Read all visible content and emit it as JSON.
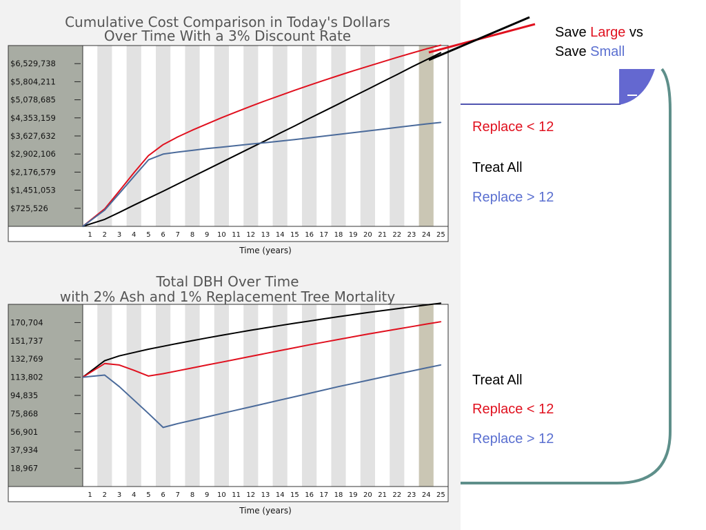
{
  "colors": {
    "red": "#e0101e",
    "black": "#000000",
    "blue": "#4a6a9a",
    "legend_blue": "#5a6fd0",
    "frame": "#5e8f8a",
    "shade": "#e2e2e2",
    "highlight": "#cac6b4",
    "tickbox": "#a8aca3",
    "panel_bg": "#f2f2f2"
  },
  "legend_top": {
    "line1_a": "Save ",
    "line1_b": "Large",
    "line1_c": " vs",
    "line2_a": "Save ",
    "line2_b": "Small",
    "items": [
      "Replace < 12",
      "Treat All",
      "Replace > 12"
    ]
  },
  "legend_bottom": {
    "items": [
      "Treat All",
      "Replace < 12",
      "Replace > 12"
    ]
  },
  "chart_data": [
    {
      "type": "line",
      "title": "Cumulative Cost Comparison in Today's Dollars\nOver Time With a 3% Discount Rate",
      "xlabel": "Time (years)",
      "ylabel": "",
      "categories": [
        "1",
        "2",
        "3",
        "4",
        "5",
        "6",
        "7",
        "8",
        "9",
        "10",
        "11",
        "12",
        "13",
        "14",
        "15",
        "16",
        "17",
        "18",
        "19",
        "20",
        "21",
        "22",
        "23",
        "24",
        "25"
      ],
      "ylim": [
        0,
        7255264
      ],
      "yticks": [
        "$6,529,738",
        "$5,804,211",
        "$5,078,685",
        "$4,353,159",
        "$3,627,632",
        "$2,902,106",
        "$2,176,579",
        "$1,451,053",
        "$725,526"
      ],
      "ytick_values": [
        6529738,
        5804211,
        5078685,
        4353159,
        3627632,
        2902106,
        2176579,
        1451053,
        725526
      ],
      "highlight_category": "24",
      "series": [
        {
          "name": "Replace < 12",
          "color": "#e0101e",
          "values": [
            0,
            700000,
            1420000,
            2150000,
            2840000,
            3280000,
            3590000,
            3860000,
            4110000,
            4360000,
            4590000,
            4820000,
            5040000,
            5250000,
            5460000,
            5660000,
            5860000,
            6050000,
            6240000,
            6420000,
            6600000,
            6780000,
            6950000,
            7120000,
            7270000
          ]
        },
        {
          "name": "Treat All",
          "color": "#000000",
          "values": [
            0,
            280000,
            560000,
            850000,
            1130000,
            1410000,
            1700000,
            1990000,
            2280000,
            2570000,
            2860000,
            3150000,
            3440000,
            3740000,
            4030000,
            4330000,
            4620000,
            4910000,
            5210000,
            5500000,
            5800000,
            6090000,
            6390000,
            6680000,
            6970000
          ]
        },
        {
          "name": "Replace > 12",
          "color": "#4a6a9a",
          "values": [
            0,
            650000,
            1320000,
            2000000,
            2670000,
            2900000,
            2980000,
            3050000,
            3120000,
            3180000,
            3240000,
            3300000,
            3360000,
            3420000,
            3480000,
            3550000,
            3620000,
            3690000,
            3760000,
            3830000,
            3900000,
            3970000,
            4040000,
            4110000,
            4170000
          ]
        }
      ]
    },
    {
      "type": "line",
      "title": "Total DBH Over Time\nwith 2% Ash and 1% Replacement Tree Mortality",
      "xlabel": "Time (years)",
      "ylabel": "",
      "categories": [
        "1",
        "2",
        "3",
        "4",
        "5",
        "6",
        "7",
        "8",
        "9",
        "10",
        "11",
        "12",
        "13",
        "14",
        "15",
        "16",
        "17",
        "18",
        "19",
        "20",
        "21",
        "22",
        "23",
        "24",
        "25"
      ],
      "ylim": [
        0,
        189671
      ],
      "yticks": [
        "170,704",
        "151,737",
        "132,769",
        "113,802",
        "94,835",
        "75,868",
        "56,901",
        "37,934",
        "18,967"
      ],
      "ytick_values": [
        170704,
        151737,
        132769,
        113802,
        94835,
        75868,
        56901,
        37934,
        18967
      ],
      "highlight_category": "24",
      "series": [
        {
          "name": "Treat All",
          "color": "#000000",
          "values": [
            113802,
            131000,
            136000,
            139500,
            143000,
            146000,
            149000,
            151900,
            154700,
            157400,
            160100,
            162700,
            165200,
            167600,
            170000,
            172300,
            174600,
            176800,
            179000,
            181100,
            183100,
            185100,
            187100,
            189000,
            190900
          ]
        },
        {
          "name": "Replace < 12",
          "color": "#e0101e",
          "values": [
            113802,
            128000,
            126500,
            121000,
            115000,
            117500,
            120500,
            123500,
            126500,
            129500,
            132500,
            135500,
            138500,
            141500,
            144500,
            147500,
            150300,
            153100,
            155900,
            158700,
            161300,
            163900,
            166500,
            169100,
            171600
          ]
        },
        {
          "name": "Replace > 12",
          "color": "#4a6a9a",
          "values": [
            113802,
            116000,
            104000,
            90000,
            76000,
            61500,
            65500,
            69000,
            72500,
            76000,
            79500,
            83000,
            86500,
            90000,
            93500,
            97000,
            100500,
            104000,
            107300,
            110600,
            113900,
            117100,
            120300,
            123500,
            126600
          ]
        }
      ]
    }
  ]
}
